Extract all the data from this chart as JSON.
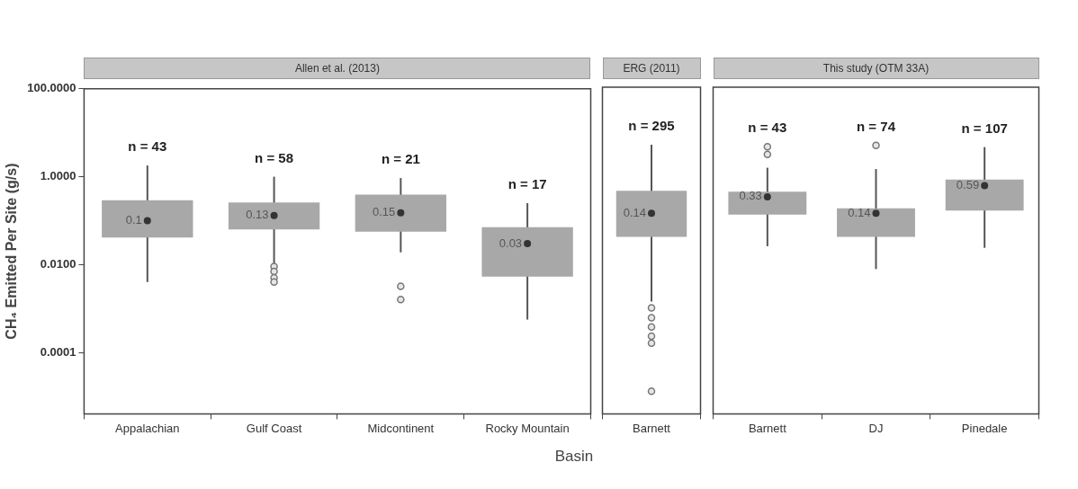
{
  "chart_data": [
    {
      "type": "box",
      "title": "Allen et al. (2013)",
      "ylabel": "CH₄ Emitted Per Site (g/s)",
      "xlabel": "Basin",
      "categories": [
        "Appalachian",
        "Gulf Coast",
        "Midcontinent",
        "Rocky Mountain"
      ],
      "color": "#a8a8a8",
      "log": true,
      "ylim": [
        4e-06,
        100
      ],
      "yticks": [
        {
          "value": 0.0001,
          "label": "0.0001"
        },
        {
          "value": 0.01,
          "label": "0.0100"
        },
        {
          "value": 1,
          "label": "1.0000"
        },
        {
          "value": 100,
          "label": "100.0000"
        }
      ],
      "grid": false,
      "legend": false,
      "boxes": [
        {
          "low": 0.004,
          "q1": 0.041,
          "median": 0.1,
          "q3": 0.29,
          "high": 1.8
        },
        {
          "low": 0.0105,
          "q1": 0.063,
          "median": 0.13,
          "q3": 0.26,
          "high": 1.0,
          "outliers": [
            0.009,
            0.007,
            0.005,
            0.004
          ]
        },
        {
          "low": 0.019,
          "q1": 0.056,
          "median": 0.15,
          "q3": 0.39,
          "high": 0.93,
          "outliers": [
            0.0032,
            0.0016
          ]
        },
        {
          "low": 0.00056,
          "q1": 0.0053,
          "median": 0.03,
          "q3": 0.071,
          "high": 0.25
        }
      ],
      "value_labels": [
        "0.1",
        "0.13",
        "0.15",
        "0.03"
      ],
      "annotations": [
        "n = 43",
        "n = 58",
        "n = 21",
        "n = 17"
      ]
    },
    {
      "type": "box",
      "title": "ERG (2011)",
      "categories": [
        "Barnett"
      ],
      "color": "#a8a8a8",
      "log": true,
      "ylim": [
        4e-06,
        100
      ],
      "tick_labels": "x",
      "grid": false,
      "legend": false,
      "boxes": [
        {
          "low": 0.0014,
          "q1": 0.041,
          "median": 0.14,
          "q3": 0.45,
          "high": 5,
          "outliers": [
            0.001,
            0.0006,
            0.00037,
            0.00023,
            0.00016,
            1.3e-05
          ]
        }
      ],
      "value_labels": [
        "0.14"
      ],
      "annotations": [
        "n = 295"
      ]
    },
    {
      "type": "box",
      "title": "This study (OTM 33A)",
      "categories": [
        "Barnett",
        "DJ",
        "Pinedale"
      ],
      "color": "#a8a8a8",
      "log": true,
      "ylim": [
        4e-06,
        100
      ],
      "tick_labels": "x",
      "grid": false,
      "legend": false,
      "boxes": [
        {
          "low": 0.025,
          "q1": 0.13,
          "median": 0.33,
          "q3": 0.43,
          "high": 1.5,
          "outliers": [
            4.5,
            3.0
          ]
        },
        {
          "low": 0.0076,
          "q1": 0.041,
          "median": 0.14,
          "q3": 0.18,
          "high": 1.4,
          "outliers": [
            4.8
          ]
        },
        {
          "low": 0.023,
          "q1": 0.16,
          "median": 0.59,
          "q3": 0.81,
          "high": 4.4
        }
      ],
      "value_labels": [
        "0.33",
        "0.14",
        "0.59"
      ],
      "annotations": [
        "n = 43",
        "n = 74",
        "n = 107"
      ]
    }
  ]
}
